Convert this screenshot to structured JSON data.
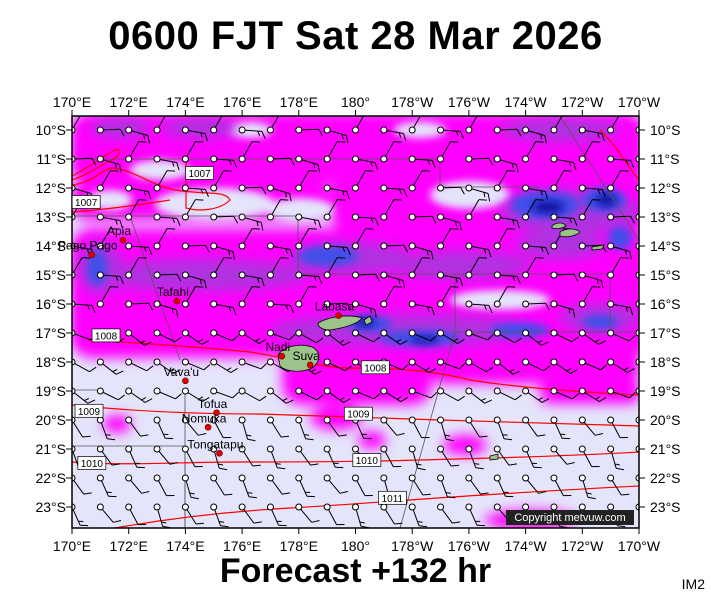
{
  "title": "0600 FJT Sat 28 Mar 2026",
  "footer": "Forecast +132 hr",
  "image_code": "IM2",
  "copyright": "Copyright metvuw.com",
  "colors": {
    "background_wind": "#e4e4fb",
    "rain_magenta": "#ff00ff",
    "rain_purple": "#b030e0",
    "rain_blue": "#4050e8",
    "rain_dark": "#1010a0",
    "isobar": "#ff0000",
    "land": "#9cc48a"
  },
  "axes": {
    "lon_labels": [
      "170°E",
      "172°E",
      "174°E",
      "176°E",
      "178°E",
      "180°",
      "178°W",
      "176°W",
      "174°W",
      "172°W",
      "170°W"
    ],
    "lat_labels": [
      "10°S",
      "11°S",
      "12°S",
      "13°S",
      "14°S",
      "15°S",
      "16°S",
      "17°S",
      "18°S",
      "19°S",
      "20°S",
      "21°S",
      "22°S",
      "23°S"
    ]
  },
  "places": [
    {
      "name": "Apia",
      "lon": 171.8,
      "lat": -13.8
    },
    {
      "name": "Pago Pago",
      "lon": 170.7,
      "lat": -14.3
    },
    {
      "name": "Tafahi",
      "lon": 173.7,
      "lat": -15.9
    },
    {
      "name": "Labasa",
      "lon": 179.4,
      "lat": -16.4
    },
    {
      "name": "Nadi",
      "lon": 177.4,
      "lat": -17.8
    },
    {
      "name": "Suva",
      "lon": 178.4,
      "lat": -18.1
    },
    {
      "name": "Vava'u",
      "lon": 174.0,
      "lat": -18.65
    },
    {
      "name": "Tofua",
      "lon": 175.1,
      "lat": -19.75
    },
    {
      "name": "Nomuka",
      "lon": 174.8,
      "lat": -20.25
    },
    {
      "name": "Tongatapu",
      "lon": 175.2,
      "lat": -21.15
    }
  ],
  "isobar_labels": [
    {
      "text": "1007",
      "lon": 174.5,
      "lat": -11.5
    },
    {
      "text": "1007",
      "lon": 170.5,
      "lat": -12.5
    },
    {
      "text": "1008",
      "lon": 171.2,
      "lat": -17.1
    },
    {
      "text": "1008",
      "lon": -179.3,
      "lat": -18.2
    },
    {
      "text": "1009",
      "lon": 170.6,
      "lat": -19.7
    },
    {
      "text": "1009",
      "lon": -179.9,
      "lat": -19.8
    },
    {
      "text": "1010",
      "lon": 170.7,
      "lat": -21.5
    },
    {
      "text": "1010",
      "lon": -179.6,
      "lat": -21.4
    },
    {
      "text": "1011",
      "lon": -178.7,
      "lat": -22.7
    }
  ]
}
